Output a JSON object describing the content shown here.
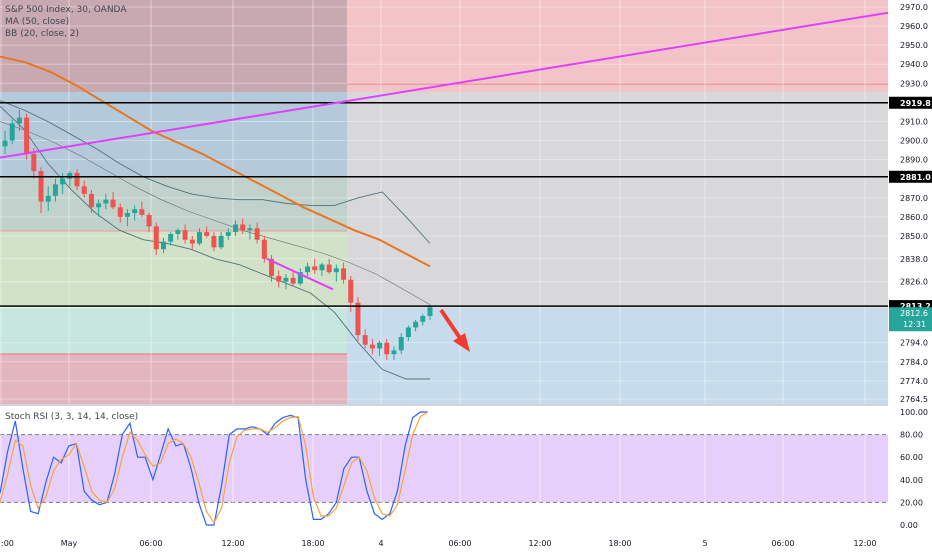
{
  "chart_data": [
    {
      "type": "candlestick",
      "title": "S&P 500 Index, 30, OANDA",
      "indicators": [
        "MA (50, close)",
        "BB (20, close, 2)"
      ],
      "y_ticks": [
        2970.0,
        2960.0,
        2950.0,
        2940.0,
        2930.0,
        2919.8,
        2910.0,
        2900.0,
        2890.0,
        2881.0,
        2870.0,
        2860.0,
        2850.0,
        2838.0,
        2826.0,
        2813.2,
        2812.6,
        2794.0,
        2784.0,
        2774.0,
        2764.5
      ],
      "y_tick_labels": [
        "2970.0",
        "2960.0",
        "2950.0",
        "2940.0",
        "2930.0",
        "",
        "2910.0",
        "2900.0",
        "2890.0",
        "",
        "2870.0",
        "2860.0",
        "2850.0",
        "2838.0",
        "2826.0",
        "",
        "",
        "2794.0",
        "2784.0",
        "2774.0",
        "2764.5"
      ],
      "ylim": [
        2764.5,
        2970.0
      ],
      "x_tick_labels": [
        ":00",
        "May",
        "06:00",
        "12:00",
        "18:00",
        "4",
        "06:00",
        "12:00",
        "18:00",
        "5",
        "06:00",
        "12:00"
      ],
      "price_levels": [
        {
          "value": 2919.8,
          "label": "2919.8"
        },
        {
          "value": 2881.0,
          "label": "2881.0"
        },
        {
          "value": 2813.2,
          "label": "2813.2"
        }
      ],
      "last_price": {
        "value": 2812.6,
        "label": "2812.6",
        "countdown": "12:31"
      },
      "colors": {
        "up": "#26a69a",
        "down": "#ef5350",
        "trendline": "#e040fb",
        "ma": "#e8761e",
        "bb": "#507378",
        "arrow": "#f23b2f"
      },
      "candles_ohlc": [
        [
          2897,
          2905,
          2893,
          2900
        ],
        [
          2900,
          2911,
          2898,
          2909
        ],
        [
          2909,
          2916,
          2905,
          2912
        ],
        [
          2912,
          2914,
          2890,
          2893
        ],
        [
          2893,
          2896,
          2880,
          2884
        ],
        [
          2884,
          2886,
          2862,
          2868
        ],
        [
          2868,
          2876,
          2863,
          2871
        ],
        [
          2871,
          2880,
          2868,
          2877
        ],
        [
          2877,
          2883,
          2872,
          2880
        ],
        [
          2880,
          2884,
          2876,
          2883
        ],
        [
          2883,
          2885,
          2874,
          2876
        ],
        [
          2876,
          2879,
          2870,
          2872
        ],
        [
          2872,
          2874,
          2862,
          2865
        ],
        [
          2865,
          2869,
          2860,
          2867
        ],
        [
          2867,
          2872,
          2864,
          2869
        ],
        [
          2869,
          2873,
          2864,
          2865
        ],
        [
          2865,
          2867,
          2857,
          2860
        ],
        [
          2860,
          2864,
          2855,
          2862
        ],
        [
          2862,
          2866,
          2858,
          2864
        ],
        [
          2864,
          2868,
          2860,
          2861
        ],
        [
          2861,
          2862,
          2852,
          2855
        ],
        [
          2855,
          2857,
          2840,
          2843
        ],
        [
          2843,
          2849,
          2841,
          2847
        ],
        [
          2847,
          2852,
          2845,
          2851
        ],
        [
          2851,
          2854,
          2848,
          2853
        ],
        [
          2853,
          2856,
          2846,
          2848
        ],
        [
          2848,
          2850,
          2843,
          2846
        ],
        [
          2846,
          2854,
          2845,
          2852
        ],
        [
          2852,
          2855,
          2849,
          2850
        ],
        [
          2850,
          2852,
          2842,
          2844
        ],
        [
          2844,
          2852,
          2843,
          2850
        ],
        [
          2850,
          2854,
          2848,
          2852
        ],
        [
          2852,
          2858,
          2850,
          2856
        ],
        [
          2856,
          2859,
          2851,
          2853
        ],
        [
          2853,
          2856,
          2848,
          2854
        ],
        [
          2854,
          2857,
          2846,
          2848
        ],
        [
          2848,
          2850,
          2836,
          2838
        ],
        [
          2838,
          2840,
          2826,
          2829
        ],
        [
          2829,
          2832,
          2823,
          2826
        ],
        [
          2826,
          2830,
          2822,
          2828
        ],
        [
          2828,
          2831,
          2824,
          2825
        ],
        [
          2825,
          2833,
          2824,
          2831
        ],
        [
          2831,
          2836,
          2829,
          2834
        ],
        [
          2834,
          2838,
          2830,
          2832
        ],
        [
          2832,
          2836,
          2829,
          2835
        ],
        [
          2835,
          2838,
          2830,
          2831
        ],
        [
          2831,
          2835,
          2826,
          2833
        ],
        [
          2833,
          2836,
          2825,
          2827
        ],
        [
          2827,
          2829,
          2810,
          2815
        ],
        [
          2815,
          2818,
          2795,
          2798
        ],
        [
          2798,
          2801,
          2791,
          2793
        ],
        [
          2793,
          2796,
          2788,
          2791
        ],
        [
          2791,
          2795,
          2787,
          2794
        ],
        [
          2794,
          2796,
          2785,
          2788
        ],
        [
          2788,
          2792,
          2785,
          2790
        ],
        [
          2790,
          2799,
          2788,
          2797
        ],
        [
          2797,
          2803,
          2795,
          2802
        ],
        [
          2802,
          2806,
          2800,
          2805
        ],
        [
          2805,
          2809,
          2803,
          2808
        ],
        [
          2808,
          2814,
          2806,
          2812.6
        ]
      ],
      "ma_50": [
        2944,
        2941,
        2936,
        2929,
        2921,
        2913,
        2905,
        2899,
        2893,
        2886,
        2879,
        2872,
        2865,
        2859,
        2853,
        2848,
        2841,
        2834
      ],
      "bb_upper": [
        2921,
        2916,
        2910,
        2903,
        2896,
        2888,
        2881,
        2876,
        2872,
        2870,
        2869,
        2869,
        2867,
        2866,
        2866,
        2870,
        2873,
        2860,
        2846
      ],
      "bb_lower": [
        2918,
        2906,
        2888,
        2874,
        2862,
        2853,
        2848,
        2846,
        2843,
        2838,
        2835,
        2830,
        2825,
        2820,
        2810,
        2794,
        2780,
        2775,
        2775
      ],
      "bb_basis": [
        2910,
        2905,
        2899,
        2892,
        2884,
        2876,
        2869,
        2863,
        2858,
        2853,
        2849,
        2845,
        2841,
        2836,
        2830,
        2822,
        2814
      ],
      "trendline_long": [
        2891,
        2967
      ],
      "trendline_short": [
        2838,
        2822
      ]
    },
    {
      "type": "line",
      "title": "Stoch RSI (3, 3, 14, 14, close)",
      "y_ticks": [
        100.0,
        80.0,
        60.0,
        40.0,
        20.0,
        0.0
      ],
      "y_tick_labels": [
        "100.00",
        "80.00",
        "60.00",
        "40.00",
        "20.00",
        "0.00"
      ],
      "ylim": [
        -5,
        103
      ],
      "band": [
        20,
        80
      ],
      "series": [
        {
          "color": "#2962ff",
          "values": [
            28,
            65,
            92,
            50,
            12,
            10,
            38,
            60,
            55,
            70,
            72,
            30,
            22,
            18,
            20,
            45,
            80,
            90,
            60,
            60,
            40,
            62,
            85,
            70,
            72,
            50,
            20,
            0,
            0,
            35,
            80,
            85,
            85,
            87,
            85,
            80,
            90,
            95,
            97,
            95,
            40,
            5,
            5,
            10,
            20,
            50,
            60,
            60,
            30,
            10,
            5,
            10,
            30,
            70,
            95,
            100,
            100
          ]
        },
        {
          "color": "#f7a33c",
          "values": [
            20,
            45,
            75,
            70,
            35,
            15,
            25,
            48,
            58,
            62,
            72,
            52,
            30,
            22,
            20,
            32,
            60,
            82,
            75,
            62,
            52,
            55,
            72,
            76,
            72,
            60,
            38,
            12,
            2,
            15,
            55,
            78,
            84,
            85,
            85,
            82,
            86,
            92,
            95,
            96,
            70,
            25,
            8,
            8,
            15,
            35,
            55,
            60,
            48,
            24,
            10,
            8,
            18,
            48,
            80,
            96,
            100
          ]
        }
      ]
    }
  ]
}
